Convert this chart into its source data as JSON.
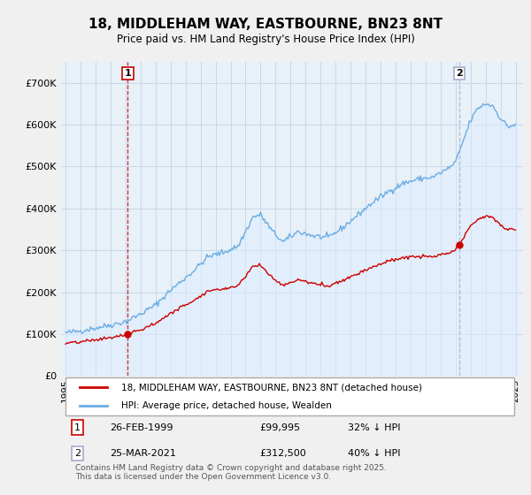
{
  "title": "18, MIDDLEHAM WAY, EASTBOURNE, BN23 8NT",
  "subtitle": "Price paid vs. HM Land Registry's House Price Index (HPI)",
  "ylim": [
    0,
    750000
  ],
  "yticks": [
    0,
    100000,
    200000,
    300000,
    400000,
    500000,
    600000,
    700000
  ],
  "ytick_labels": [
    "£0",
    "£100K",
    "£200K",
    "£300K",
    "£400K",
    "£500K",
    "£600K",
    "£700K"
  ],
  "hpi_color": "#6aade4",
  "hpi_fill_color": "#ddeeff",
  "price_color": "#cc0000",
  "marker1_color": "#cc0000",
  "marker2_color": "#aaaacc",
  "marker1_date": 1999.15,
  "marker1_price": 99995,
  "marker2_date": 2021.23,
  "marker2_price": 312500,
  "legend_line1": "18, MIDDLEHAM WAY, EASTBOURNE, BN23 8NT (detached house)",
  "legend_line2": "HPI: Average price, detached house, Wealden",
  "footer": "Contains HM Land Registry data © Crown copyright and database right 2025.\nThis data is licensed under the Open Government Licence v3.0.",
  "bg_color": "#f0f0f0",
  "plot_bg_color": "#e8f0f8",
  "grid_color": "#c8d8e8",
  "hpi_anchors_t": [
    1995.0,
    1996.0,
    1997.0,
    1998.0,
    1999.0,
    2000.0,
    2001.0,
    2002.0,
    2003.5,
    2004.5,
    2005.5,
    2006.5,
    2007.5,
    2008.0,
    2008.8,
    2009.5,
    2010.5,
    2011.5,
    2012.5,
    2013.5,
    2014.5,
    2015.5,
    2016.5,
    2017.5,
    2018.5,
    2019.5,
    2020.5,
    2021.0,
    2021.5,
    2022.0,
    2022.5,
    2023.0,
    2023.5,
    2024.0,
    2024.5,
    2025.0
  ],
  "hpi_anchors_v": [
    103000,
    108000,
    115000,
    122000,
    130000,
    148000,
    170000,
    205000,
    250000,
    285000,
    295000,
    310000,
    380000,
    385000,
    345000,
    320000,
    345000,
    335000,
    330000,
    355000,
    385000,
    415000,
    440000,
    460000,
    470000,
    475000,
    495000,
    510000,
    560000,
    610000,
    640000,
    650000,
    645000,
    615000,
    595000,
    600000
  ]
}
